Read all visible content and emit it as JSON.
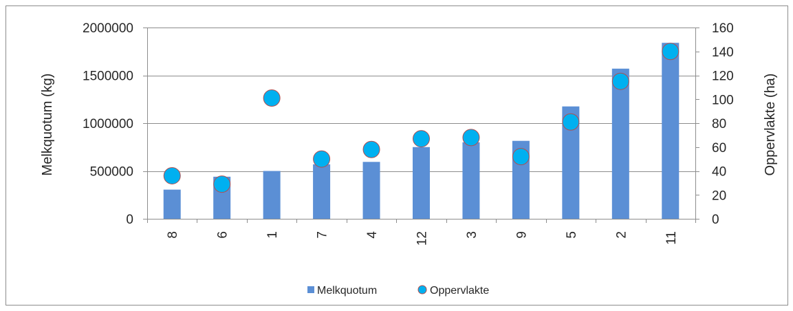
{
  "chart_data": {
    "type": "bar",
    "categories": [
      "8",
      "6",
      "1",
      "7",
      "4",
      "12",
      "3",
      "9",
      "5",
      "2",
      "11"
    ],
    "series": [
      {
        "name": "Melkquotum",
        "type": "bar",
        "axis": "left",
        "color": "#5b8fd5",
        "values": [
          305000,
          440000,
          500000,
          570000,
          595000,
          750000,
          800000,
          815000,
          1175000,
          1570000,
          1840000
        ]
      },
      {
        "name": "Oppervlakte",
        "type": "scatter",
        "axis": "right",
        "color": "#00b0f0",
        "edge_color": "#b05050",
        "values": [
          36,
          29,
          101,
          50,
          58,
          67,
          68,
          52,
          81,
          115,
          140
        ]
      }
    ],
    "title": "",
    "xlabel": "",
    "ylabel": "Melkquotum (kg)",
    "y2label": "Oppervlakte (ha)",
    "ylim": [
      0,
      2000000
    ],
    "y2lim": [
      0,
      160
    ],
    "yticks": [
      "0",
      "500000",
      "1000000",
      "1500000",
      "2000000"
    ],
    "y2ticks": [
      "0",
      "20",
      "40",
      "60",
      "80",
      "100",
      "120",
      "140",
      "160"
    ],
    "grid": true,
    "legend": "bottom",
    "gridline_color": "#8c8c8c"
  }
}
